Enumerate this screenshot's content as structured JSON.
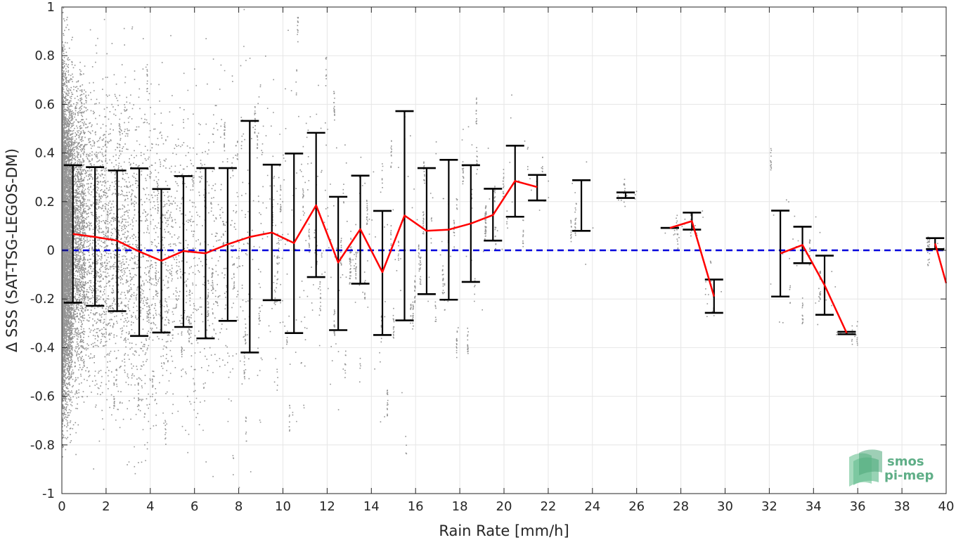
{
  "chart_data": {
    "type": "scatter",
    "title": "",
    "xlabel": "Rain Rate [mm/h]",
    "ylabel": "Δ SSS (SAT-TSG-LEGOS-DM)",
    "xlim": [
      0,
      40
    ],
    "ylim": [
      -1,
      1
    ],
    "xticks": [
      0,
      2,
      4,
      6,
      8,
      10,
      12,
      14,
      16,
      18,
      20,
      22,
      24,
      26,
      28,
      30,
      32,
      34,
      36,
      38,
      40
    ],
    "yticks": [
      -1,
      -0.8,
      -0.6,
      -0.4,
      -0.2,
      0,
      0.2,
      0.4,
      0.6,
      0.8,
      1
    ],
    "ytick_labels": [
      "-1",
      "-0.8",
      "-0.6",
      "-0.4",
      "-0.2",
      "0",
      "0.2",
      "0.4",
      "0.6",
      "0.8",
      "1"
    ],
    "grid": true,
    "colors": {
      "scatter": "#808080",
      "mean_line": "#ff0000",
      "zero_line": "#0000dd",
      "error_bars": "#000000",
      "grid": "#e6e6e6"
    },
    "zero_reference": 0,
    "binned_stats": [
      {
        "x": 0.5,
        "mean": 0.067,
        "low": -0.215,
        "high": 0.35
      },
      {
        "x": 1.5,
        "mean": 0.055,
        "low": -0.228,
        "high": 0.342
      },
      {
        "x": 2.5,
        "mean": 0.04,
        "low": -0.25,
        "high": 0.328
      },
      {
        "x": 3.5,
        "mean": -0.005,
        "low": -0.352,
        "high": 0.337
      },
      {
        "x": 4.5,
        "mean": -0.043,
        "low": -0.338,
        "high": 0.252
      },
      {
        "x": 5.5,
        "mean": -0.003,
        "low": -0.315,
        "high": 0.305
      },
      {
        "x": 6.5,
        "mean": -0.012,
        "low": -0.362,
        "high": 0.338
      },
      {
        "x": 7.5,
        "mean": 0.025,
        "low": -0.29,
        "high": 0.338
      },
      {
        "x": 8.5,
        "mean": 0.055,
        "low": -0.42,
        "high": 0.532
      },
      {
        "x": 9.5,
        "mean": 0.073,
        "low": -0.205,
        "high": 0.352
      },
      {
        "x": 10.5,
        "mean": 0.03,
        "low": -0.34,
        "high": 0.398
      },
      {
        "x": 11.5,
        "mean": 0.185,
        "low": -0.11,
        "high": 0.483
      },
      {
        "x": 12.5,
        "mean": -0.05,
        "low": -0.328,
        "high": 0.22
      },
      {
        "x": 13.5,
        "mean": 0.087,
        "low": -0.137,
        "high": 0.307
      },
      {
        "x": 14.5,
        "mean": -0.09,
        "low": -0.348,
        "high": 0.162
      },
      {
        "x": 15.5,
        "mean": 0.143,
        "low": -0.288,
        "high": 0.572
      },
      {
        "x": 16.5,
        "mean": 0.08,
        "low": -0.18,
        "high": 0.338
      },
      {
        "x": 17.5,
        "mean": 0.085,
        "low": -0.203,
        "high": 0.372
      },
      {
        "x": 18.5,
        "mean": 0.11,
        "low": -0.13,
        "high": 0.35
      },
      {
        "x": 19.5,
        "mean": 0.145,
        "low": 0.04,
        "high": 0.253
      },
      {
        "x": 20.5,
        "mean": 0.285,
        "low": 0.138,
        "high": 0.43
      },
      {
        "x": 21.5,
        "mean": 0.26,
        "low": 0.205,
        "high": 0.31
      },
      {
        "x": 23.5,
        "mean": 0.185,
        "low": 0.08,
        "high": 0.288
      },
      {
        "x": 25.5,
        "mean": 0.226,
        "low": 0.215,
        "high": 0.238
      },
      {
        "x": 27.5,
        "mean": 0.092,
        "low": 0.092,
        "high": 0.092
      },
      {
        "x": 28.5,
        "mean": 0.12,
        "low": 0.085,
        "high": 0.155
      },
      {
        "x": 29.5,
        "mean": -0.19,
        "low": -0.257,
        "high": -0.12
      },
      {
        "x": 32.5,
        "mean": -0.013,
        "low": -0.19,
        "high": 0.163
      },
      {
        "x": 33.5,
        "mean": 0.022,
        "low": -0.053,
        "high": 0.097
      },
      {
        "x": 34.5,
        "mean": -0.143,
        "low": -0.265,
        "high": -0.022
      },
      {
        "x": 35.5,
        "mean": -0.34,
        "low": -0.345,
        "high": -0.335
      },
      {
        "x": 39.5,
        "mean": 0.028,
        "low": 0.005,
        "high": 0.05
      },
      {
        "x": 40.0,
        "mean": -0.135
      }
    ],
    "mean_line_segments": [
      [
        0.5,
        1.5,
        2.5,
        3.5,
        4.5,
        5.5,
        6.5,
        7.5,
        8.5,
        9.5,
        10.5,
        11.5,
        12.5,
        13.5,
        14.5,
        15.5,
        16.5,
        17.5,
        18.5,
        19.5,
        20.5,
        21.5
      ],
      [
        27.5,
        28.5,
        29.5
      ],
      [
        32.5,
        33.5,
        34.5,
        35.5
      ],
      [
        39.5,
        40.0
      ]
    ],
    "scatter_note_density": "dense near rain rate 0, sparse beyond 20"
  },
  "logo": {
    "line1": "smos",
    "line2": "pi-mep"
  }
}
